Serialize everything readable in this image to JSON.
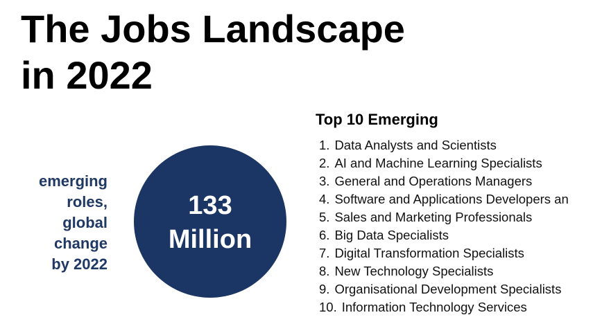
{
  "title_lines": [
    "The Jobs Landscape",
    "in 2022"
  ],
  "side_label_lines": [
    "emerging",
    "roles,",
    "global",
    "change",
    "by 2022"
  ],
  "circle_lines": [
    "133",
    "Million"
  ],
  "list": {
    "heading": "Top 10 Emerging",
    "items": [
      {
        "number": "1.",
        "text": "Data Analysts and Scientists"
      },
      {
        "number": "2.",
        "text": "AI and Machine Learning Specialists"
      },
      {
        "number": "3.",
        "text": "General and Operations Managers"
      },
      {
        "number": "4.",
        "text": "Software and Applications Developers an"
      },
      {
        "number": "5.",
        "text": "Sales and Marketing Professionals"
      },
      {
        "number": "6.",
        "text": "Big Data Specialists"
      },
      {
        "number": "7.",
        "text": "Digital Transformation Specialists"
      },
      {
        "number": "8.",
        "text": "New Technology Specialists"
      },
      {
        "number": "9.",
        "text": "Organisational Development Specialists"
      },
      {
        "number": "10.",
        "text": "Information Technology Services"
      }
    ]
  }
}
